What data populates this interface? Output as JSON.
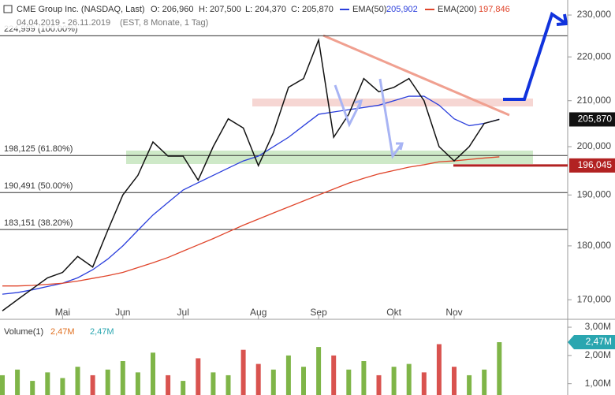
{
  "chart_data": {
    "type": "line",
    "log_scale": true,
    "header": {
      "title": "CME Group Inc. (NASDAQ, Last)",
      "ohlc": [
        "O: 206,960",
        "H: 207,500",
        "L: 204,370",
        "C: 205,870"
      ],
      "range": "04.04.2019 - 26.11.2019",
      "info": "(EST, 8 Monate, 1 Tag)"
    },
    "categories": [
      null,
      null,
      null,
      null,
      "Mai",
      null,
      null,
      null,
      "Jun",
      null,
      null,
      null,
      "Jul",
      null,
      null,
      null,
      null,
      "Aug",
      null,
      null,
      null,
      "Sep",
      null,
      null,
      null,
      null,
      "Okt",
      null,
      null,
      null,
      "Nov",
      null,
      null,
      null
    ],
    "price": {
      "color": "#111111",
      "values": [
        168,
        170,
        172,
        174,
        175,
        178,
        176,
        183,
        190,
        194,
        201,
        198,
        198,
        193,
        200,
        206,
        204,
        196,
        203,
        213,
        215,
        224,
        202,
        207,
        215,
        212,
        213,
        215,
        210,
        200,
        197,
        200,
        205,
        205.87
      ]
    },
    "series": [
      {
        "name": "EMA(50)",
        "value_label": "205,902",
        "color": "#2b3fdc",
        "values": [
          171,
          171.3,
          171.8,
          172.4,
          173,
          174,
          175.5,
          177.5,
          180,
          183,
          186,
          188.5,
          191,
          192.5,
          194,
          195.5,
          197,
          198,
          200,
          202,
          204.5,
          207,
          207.5,
          208,
          208.5,
          209,
          210,
          211,
          211,
          209,
          206,
          204.5,
          205,
          205.902
        ]
      },
      {
        "name": "EMA(200)",
        "value_label": "197,846",
        "color": "#e0452b",
        "values": [
          172.5,
          172.5,
          172.6,
          172.8,
          173,
          173.4,
          173.9,
          174.4,
          175,
          175.9,
          176.8,
          177.8,
          179,
          180.2,
          181.4,
          182.7,
          184,
          185.2,
          186.4,
          187.6,
          188.8,
          190,
          191.2,
          192.4,
          193.4,
          194.3,
          195,
          195.7,
          196.2,
          196.8,
          197,
          197.3,
          197.6,
          197.846
        ]
      }
    ],
    "ylim": [
      166.5,
      233.7
    ],
    "yticks": [
      {
        "value": 170,
        "label": "170,000"
      },
      {
        "value": 180,
        "label": "180,000"
      },
      {
        "value": 190,
        "label": "190,000"
      },
      {
        "value": 200,
        "label": "200,000"
      },
      {
        "value": 210,
        "label": "210,000"
      },
      {
        "value": 220,
        "label": "220,000"
      },
      {
        "value": 230,
        "label": "230,000"
      }
    ],
    "levels": [
      {
        "value": 224.999,
        "label": "224,999 (100.00%)"
      },
      {
        "value": 198.125,
        "label": "198,125 (61.80%)"
      },
      {
        "value": 190.491,
        "label": "190,491 (50.00%)"
      },
      {
        "value": 183.151,
        "label": "183,151 (38.20%)"
      }
    ],
    "last_price": {
      "value": 205.87,
      "label": "205,870"
    },
    "support": {
      "value": 196.045,
      "label": "196,045"
    },
    "volume": {
      "title": "Volume(1)",
      "value_label": "2,47M",
      "up_color": "#7fb548",
      "down_color": "#d9534f",
      "values": [
        1.3,
        1.5,
        1.1,
        1.4,
        1.2,
        1.6,
        1.3,
        1.5,
        1.8,
        1.4,
        2.1,
        1.3,
        1.1,
        1.9,
        1.4,
        1.3,
        2.2,
        1.7,
        1.5,
        2.0,
        1.6,
        2.3,
        2.0,
        1.5,
        1.8,
        1.3,
        1.6,
        1.7,
        1.4,
        2.4,
        1.6,
        1.3,
        1.5,
        2.47
      ],
      "ylim": [
        0.6,
        3.28
      ],
      "yticks": [
        {
          "value": 1,
          "label": "1,00M"
        },
        {
          "value": 2,
          "label": "2,00M"
        },
        {
          "value": 3,
          "label": "3,00M"
        }
      ],
      "last": {
        "value": 2.47,
        "label": "2,47M"
      }
    }
  }
}
